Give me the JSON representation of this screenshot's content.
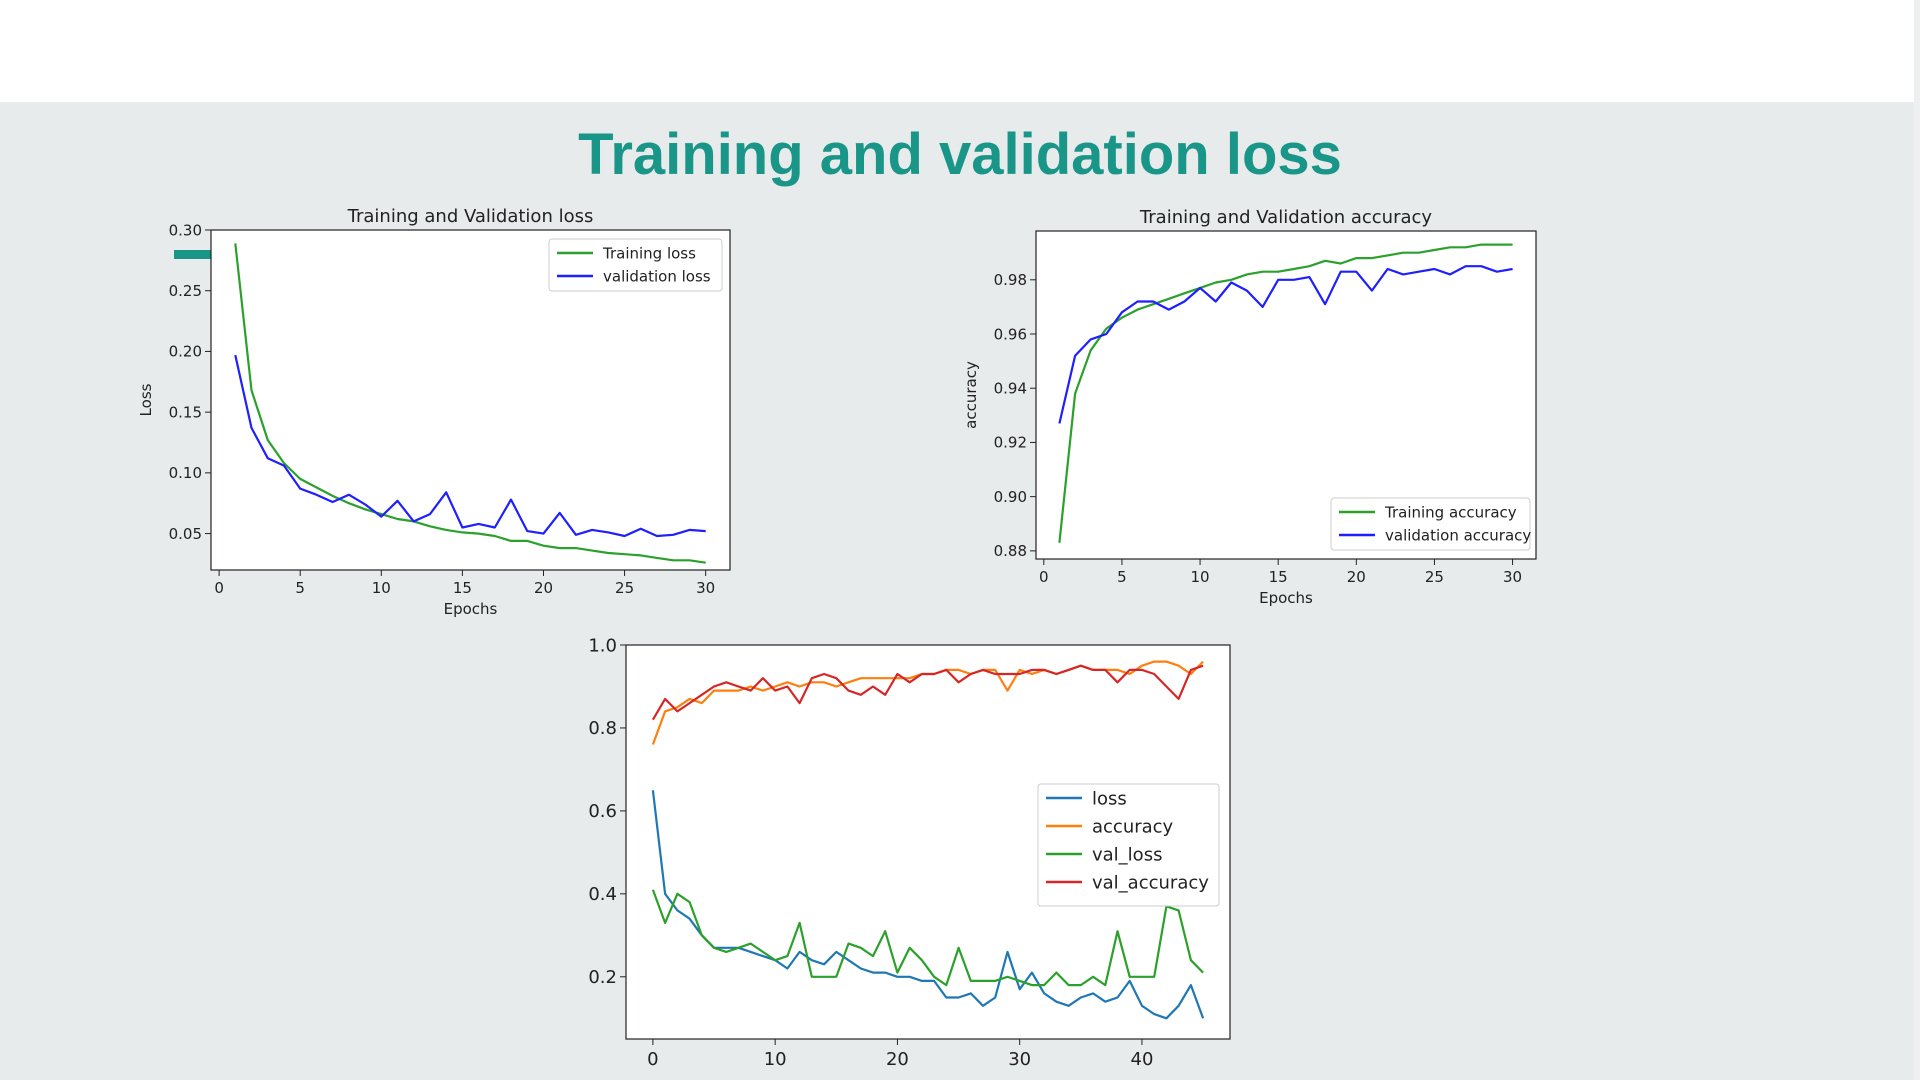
{
  "slide": {
    "title": "Training and validation loss",
    "accent_color": "#1a9688",
    "background": "#e8ebeb"
  },
  "chart_data": [
    {
      "type": "line",
      "title": "Training and Validation loss",
      "xlabel": "Epochs",
      "ylabel": "Loss",
      "xlim": [
        -0.5,
        31.5
      ],
      "ylim": [
        0.02,
        0.3
      ],
      "xticks": [
        0,
        5,
        10,
        15,
        20,
        25,
        30
      ],
      "yticks": [
        0.05,
        0.1,
        0.15,
        0.2,
        0.25,
        0.3
      ],
      "ytick_labels": [
        "0.05",
        "0.10",
        "0.15",
        "0.20",
        "0.25",
        "0.30"
      ],
      "legend_position": "upper right",
      "x": [
        1,
        2,
        3,
        4,
        5,
        6,
        7,
        8,
        9,
        10,
        11,
        12,
        13,
        14,
        15,
        16,
        17,
        18,
        19,
        20,
        21,
        22,
        23,
        24,
        25,
        26,
        27,
        28,
        29,
        30
      ],
      "series": [
        {
          "name": "Training loss",
          "color": "#2ca02c",
          "values": [
            0.289,
            0.168,
            0.127,
            0.108,
            0.095,
            0.088,
            0.081,
            0.075,
            0.07,
            0.066,
            0.062,
            0.06,
            0.056,
            0.053,
            0.051,
            0.05,
            0.048,
            0.044,
            0.044,
            0.04,
            0.038,
            0.038,
            0.036,
            0.034,
            0.033,
            0.032,
            0.03,
            0.028,
            0.028,
            0.026
          ]
        },
        {
          "name": "validation loss",
          "color": "#1f1fff",
          "values": [
            0.197,
            0.137,
            0.112,
            0.106,
            0.087,
            0.082,
            0.076,
            0.082,
            0.074,
            0.064,
            0.077,
            0.06,
            0.066,
            0.084,
            0.055,
            0.058,
            0.055,
            0.078,
            0.052,
            0.05,
            0.067,
            0.049,
            0.053,
            0.051,
            0.048,
            0.054,
            0.048,
            0.049,
            0.053,
            0.052
          ]
        }
      ]
    },
    {
      "type": "line",
      "title": "Training and Validation accuracy",
      "xlabel": "Epochs",
      "ylabel": "accuracy",
      "xlim": [
        -0.5,
        31.5
      ],
      "ylim": [
        0.877,
        0.998
      ],
      "xticks": [
        0,
        5,
        10,
        15,
        20,
        25,
        30
      ],
      "yticks": [
        0.88,
        0.9,
        0.92,
        0.94,
        0.96,
        0.98
      ],
      "ytick_labels": [
        "0.88",
        "0.90",
        "0.92",
        "0.94",
        "0.96",
        "0.98"
      ],
      "legend_position": "lower right",
      "x": [
        1,
        2,
        3,
        4,
        5,
        6,
        7,
        8,
        9,
        10,
        11,
        12,
        13,
        14,
        15,
        16,
        17,
        18,
        19,
        20,
        21,
        22,
        23,
        24,
        25,
        26,
        27,
        28,
        29,
        30
      ],
      "series": [
        {
          "name": "Training accuracy",
          "color": "#2ca02c",
          "values": [
            0.883,
            0.938,
            0.954,
            0.962,
            0.966,
            0.969,
            0.971,
            0.973,
            0.975,
            0.977,
            0.979,
            0.98,
            0.982,
            0.983,
            0.983,
            0.984,
            0.985,
            0.987,
            0.986,
            0.988,
            0.988,
            0.989,
            0.99,
            0.99,
            0.991,
            0.992,
            0.992,
            0.993,
            0.993,
            0.993
          ]
        },
        {
          "name": "validation accuracy",
          "color": "#1f1fff",
          "values": [
            0.927,
            0.952,
            0.958,
            0.96,
            0.968,
            0.972,
            0.972,
            0.969,
            0.972,
            0.977,
            0.972,
            0.979,
            0.976,
            0.97,
            0.98,
            0.98,
            0.981,
            0.971,
            0.983,
            0.983,
            0.976,
            0.984,
            0.982,
            0.983,
            0.984,
            0.982,
            0.985,
            0.985,
            0.983,
            0.984
          ]
        }
      ]
    },
    {
      "type": "line",
      "title": "",
      "xlabel": "",
      "ylabel": "",
      "xlim": [
        -2.2,
        47.2
      ],
      "ylim": [
        0.05,
        1.0
      ],
      "xticks": [
        0,
        10,
        20,
        30,
        40
      ],
      "yticks": [
        0.2,
        0.4,
        0.6,
        0.8,
        1.0
      ],
      "ytick_labels": [
        "0.2",
        "0.4",
        "0.6",
        "0.8",
        "1.0"
      ],
      "legend_position": "center right",
      "x": [
        0,
        1,
        2,
        3,
        4,
        5,
        6,
        7,
        8,
        9,
        10,
        11,
        12,
        13,
        14,
        15,
        16,
        17,
        18,
        19,
        20,
        21,
        22,
        23,
        24,
        25,
        26,
        27,
        28,
        29,
        30,
        31,
        32,
        33,
        34,
        35,
        36,
        37,
        38,
        39,
        40,
        41,
        42,
        43,
        44,
        45
      ],
      "series": [
        {
          "name": "loss",
          "color": "#1f77b4",
          "values": [
            0.65,
            0.4,
            0.36,
            0.34,
            0.3,
            0.27,
            0.27,
            0.27,
            0.26,
            0.25,
            0.24,
            0.22,
            0.26,
            0.24,
            0.23,
            0.26,
            0.24,
            0.22,
            0.21,
            0.21,
            0.2,
            0.2,
            0.19,
            0.19,
            0.15,
            0.15,
            0.16,
            0.13,
            0.15,
            0.26,
            0.17,
            0.21,
            0.16,
            0.14,
            0.13,
            0.15,
            0.16,
            0.14,
            0.15,
            0.19,
            0.13,
            0.11,
            0.1,
            0.13,
            0.18,
            0.1
          ]
        },
        {
          "name": "accuracy",
          "color": "#ff7f0e",
          "values": [
            0.76,
            0.84,
            0.85,
            0.87,
            0.86,
            0.89,
            0.89,
            0.89,
            0.9,
            0.89,
            0.9,
            0.91,
            0.9,
            0.91,
            0.91,
            0.9,
            0.91,
            0.92,
            0.92,
            0.92,
            0.92,
            0.92,
            0.93,
            0.93,
            0.94,
            0.94,
            0.93,
            0.94,
            0.94,
            0.89,
            0.94,
            0.93,
            0.94,
            0.93,
            0.94,
            0.95,
            0.94,
            0.94,
            0.94,
            0.93,
            0.95,
            0.96,
            0.96,
            0.95,
            0.93,
            0.96
          ]
        },
        {
          "name": "val_loss",
          "color": "#2ca02c",
          "values": [
            0.41,
            0.33,
            0.4,
            0.38,
            0.3,
            0.27,
            0.26,
            0.27,
            0.28,
            0.26,
            0.24,
            0.25,
            0.33,
            0.2,
            0.2,
            0.2,
            0.28,
            0.27,
            0.25,
            0.31,
            0.21,
            0.27,
            0.24,
            0.2,
            0.18,
            0.27,
            0.19,
            0.19,
            0.19,
            0.2,
            0.19,
            0.18,
            0.18,
            0.21,
            0.18,
            0.18,
            0.2,
            0.18,
            0.31,
            0.2,
            0.2,
            0.2,
            0.37,
            0.36,
            0.24,
            0.21
          ]
        },
        {
          "name": "val_accuracy",
          "color": "#d62728",
          "values": [
            0.82,
            0.87,
            0.84,
            0.86,
            0.88,
            0.9,
            0.91,
            0.9,
            0.89,
            0.92,
            0.89,
            0.9,
            0.86,
            0.92,
            0.93,
            0.92,
            0.89,
            0.88,
            0.9,
            0.88,
            0.93,
            0.91,
            0.93,
            0.93,
            0.94,
            0.91,
            0.93,
            0.94,
            0.93,
            0.93,
            0.93,
            0.94,
            0.94,
            0.93,
            0.94,
            0.95,
            0.94,
            0.94,
            0.91,
            0.94,
            0.94,
            0.93,
            0.9,
            0.87,
            0.94,
            0.95
          ]
        }
      ]
    }
  ]
}
